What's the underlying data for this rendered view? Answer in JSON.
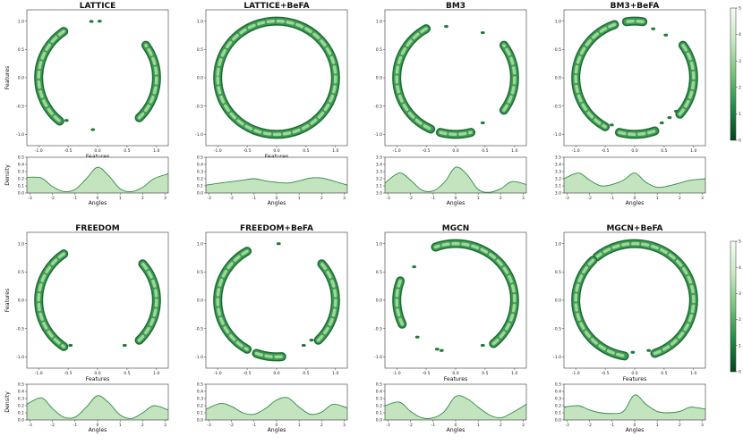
{
  "figure": {
    "rows": [
      {
        "panels": [
          "LATTICE",
          "LATTICE+BeFA",
          "BM3",
          "BM3+BeFA"
        ]
      },
      {
        "panels": [
          "FREEDOM",
          "FREEDOM+BeFA",
          "MGCN",
          "MGCN+BeFA"
        ]
      }
    ],
    "colorbar": {
      "ticks": [
        "0",
        "1",
        "2",
        "3",
        "4",
        "5"
      ],
      "colormap": "Greens"
    }
  },
  "chart_data": [
    {
      "type": "scatter-kde",
      "title": "LATTICE",
      "scatter": {
        "xlabel": "Features",
        "ylabel": "Features",
        "xticks": [
          "-1.0",
          "-0.5",
          "0.0",
          "0.5",
          "1.0"
        ],
        "yticks": [
          "-1.0",
          "-0.5",
          "0.0",
          "0.5",
          "1.0"
        ],
        "xlim": [
          -1.2,
          1.2
        ],
        "ylim": [
          -1.2,
          1.2
        ],
        "arcs_deg": [
          [
            125,
            230
          ],
          [
            -45,
            35
          ]
        ],
        "dots_deg": [
          235,
          265,
          88,
          96
        ]
      },
      "density": {
        "xlabel": "Angles",
        "ylabel": "Density",
        "xlim": [
          -3.14,
          3.14
        ],
        "ylim": [
          0,
          0.5
        ],
        "yticks": [
          "0.0",
          "0.1",
          "0.2",
          "0.3",
          "0.4",
          "0.5"
        ],
        "xticks": [
          "-3",
          "-2",
          "-1",
          "0",
          "1",
          "2",
          "3"
        ],
        "angles": [
          -3.14,
          -2.5,
          -2,
          -1.5,
          -1,
          -0.5,
          0,
          0.5,
          1,
          1.5,
          2,
          2.5,
          3.14
        ],
        "values": [
          0.22,
          0.21,
          0.09,
          0.02,
          0.05,
          0.2,
          0.36,
          0.24,
          0.06,
          0.02,
          0.08,
          0.2,
          0.27
        ]
      }
    },
    {
      "type": "scatter-kde",
      "title": "LATTICE+BeFA",
      "scatter": {
        "xlabel": "Features",
        "ylabel": "",
        "xticks": [
          "-1.0",
          "-0.5",
          "0.0",
          "0.5",
          "1.0"
        ],
        "yticks": [
          "-1.0",
          "-0.5",
          "0.0",
          "0.5",
          "1.0"
        ],
        "xlim": [
          -1.2,
          1.2
        ],
        "ylim": [
          -1.2,
          1.2
        ],
        "arcs_deg": [
          [
            0,
            360
          ]
        ],
        "dots_deg": []
      },
      "density": {
        "xlabel": "Angles",
        "ylabel": "",
        "xlim": [
          -3.14,
          3.14
        ],
        "ylim": [
          0,
          0.5
        ],
        "yticks": [
          "0.0",
          "0.1",
          "0.2",
          "0.3",
          "0.4",
          "0.5"
        ],
        "xticks": [
          "-3",
          "-2",
          "-1",
          "0",
          "1",
          "2",
          "3"
        ],
        "angles": [
          -3.14,
          -2.5,
          -2,
          -1.5,
          -1,
          -0.5,
          0,
          0.5,
          1,
          1.5,
          2,
          2.5,
          3.14
        ],
        "values": [
          0.11,
          0.14,
          0.16,
          0.18,
          0.2,
          0.17,
          0.15,
          0.14,
          0.17,
          0.21,
          0.21,
          0.17,
          0.11
        ]
      }
    },
    {
      "type": "scatter-kde",
      "title": "BM3",
      "scatter": {
        "xlabel": "",
        "ylabel": "",
        "xticks": [
          "-1.0",
          "-0.5",
          "0.0",
          "0.5",
          "1.0"
        ],
        "yticks": [
          "-1.0",
          "-0.5",
          "0.0",
          "0.5",
          "1.0"
        ],
        "xlim": [
          -1.2,
          1.2
        ],
        "ylim": [
          -1.2,
          1.2
        ],
        "arcs_deg": [
          [
            120,
            245
          ],
          [
            -35,
            35
          ],
          [
            255,
            285
          ]
        ],
        "dots_deg": [
          100,
          300,
          60
        ]
      },
      "density": {
        "xlabel": "Angles",
        "ylabel": "",
        "xlim": [
          -3.14,
          3.14
        ],
        "ylim": [
          3.0,
          3.5
        ],
        "yticks": [
          "3.0",
          "3.1",
          "3.2",
          "3.3",
          "3.4",
          "3.5"
        ],
        "xticks": [
          "-3",
          "-2",
          "-1",
          "0",
          "1",
          "2",
          "3"
        ],
        "angles": [
          -3.14,
          -2.5,
          -2,
          -1.5,
          -1,
          -0.5,
          0,
          0.5,
          1,
          1.5,
          2,
          2.5,
          3.14
        ],
        "values": [
          3.14,
          3.28,
          3.18,
          3.04,
          3.03,
          3.15,
          3.36,
          3.26,
          3.05,
          3.01,
          3.06,
          3.16,
          3.12
        ]
      }
    },
    {
      "type": "scatter-kde",
      "title": "BM3+BeFA",
      "scatter": {
        "xlabel": "",
        "ylabel": "",
        "xticks": [
          "-1.0",
          "-0.5",
          "0.0",
          "0.5",
          "1.0"
        ],
        "yticks": [
          "-1.0",
          "-0.5",
          "0.0",
          "0.5",
          "1.0"
        ],
        "xlim": [
          -1.2,
          1.2
        ],
        "ylim": [
          -1.2,
          1.2
        ],
        "arcs_deg": [
          [
            110,
            240
          ],
          [
            -40,
            35
          ],
          [
            255,
            290
          ],
          [
            82,
            98
          ]
        ],
        "dots_deg": [
          55,
          70,
          310,
          320,
          245,
          300
        ]
      },
      "density": {
        "xlabel": "Angles",
        "ylabel": "",
        "xlim": [
          -3.14,
          3.14
        ],
        "ylim": [
          3.0,
          3.5
        ],
        "yticks": [
          "3.0",
          "3.1",
          "3.2",
          "3.3",
          "3.4",
          "3.5"
        ],
        "xticks": [
          "-3",
          "-2",
          "-1",
          "0",
          "1",
          "2",
          "3"
        ],
        "angles": [
          -3.14,
          -2.5,
          -2,
          -1.5,
          -1,
          -0.5,
          0,
          0.5,
          1,
          1.5,
          2,
          2.5,
          3.14
        ],
        "values": [
          3.2,
          3.28,
          3.18,
          3.1,
          3.12,
          3.18,
          3.28,
          3.15,
          3.08,
          3.1,
          3.14,
          3.18,
          3.2
        ]
      }
    },
    {
      "type": "scatter-kde",
      "title": "FREEDOM",
      "scatter": {
        "xlabel": "Features",
        "ylabel": "Features",
        "xticks": [
          "-1.0",
          "-0.5",
          "0.0",
          "0.5",
          "1.0"
        ],
        "yticks": [
          "-1.0",
          "-0.5",
          "0.0",
          "0.5",
          "1.0"
        ],
        "xlim": [
          -1.2,
          1.2
        ],
        "ylim": [
          -1.2,
          1.2
        ],
        "arcs_deg": [
          [
            125,
            235
          ],
          [
            -45,
            40
          ]
        ],
        "dots_deg": [
          240,
          300
        ]
      },
      "density": {
        "xlabel": "Angles",
        "ylabel": "Density",
        "xlim": [
          -3.14,
          3.14
        ],
        "ylim": [
          0,
          0.5
        ],
        "yticks": [
          "0.0",
          "0.1",
          "0.2",
          "0.3",
          "0.4",
          "0.5"
        ],
        "xticks": [
          "-3",
          "-2",
          "-1",
          "0",
          "1",
          "2",
          "3"
        ],
        "angles": [
          -3.14,
          -2.5,
          -2,
          -1.5,
          -1,
          -0.5,
          0,
          0.5,
          1,
          1.5,
          2,
          2.5,
          3.14
        ],
        "values": [
          0.22,
          0.31,
          0.16,
          0.04,
          0.04,
          0.18,
          0.34,
          0.24,
          0.07,
          0.02,
          0.1,
          0.2,
          0.14
        ]
      }
    },
    {
      "type": "scatter-kde",
      "title": "FREEDOM+BeFA",
      "scatter": {
        "xlabel": "",
        "ylabel": "",
        "xticks": [
          "-1.0",
          "-0.5",
          "0.0",
          "0.5",
          "1.0"
        ],
        "yticks": [
          "-1.0",
          "-0.5",
          "0.0",
          "0.5",
          "1.0"
        ],
        "xlim": [
          -1.2,
          1.2
        ],
        "ylim": [
          -1.2,
          1.2
        ],
        "arcs_deg": [
          [
            120,
            240
          ],
          [
            -45,
            40
          ],
          [
            250,
            275
          ]
        ],
        "dots_deg": [
          88,
          300,
          310
        ]
      },
      "density": {
        "xlabel": "Angles",
        "ylabel": "",
        "xlim": [
          -3.14,
          3.14
        ],
        "ylim": [
          0,
          0.5
        ],
        "yticks": [
          "0.0",
          "0.1",
          "0.2",
          "0.3",
          "0.4",
          "0.5"
        ],
        "xticks": [
          "-3",
          "-2",
          "-1",
          "0",
          "1",
          "2",
          "3"
        ],
        "angles": [
          -3.14,
          -2.5,
          -2,
          -1.5,
          -1,
          -0.5,
          0,
          0.5,
          1,
          1.5,
          2,
          2.5,
          3.14
        ],
        "values": [
          0.15,
          0.23,
          0.19,
          0.1,
          0.08,
          0.16,
          0.28,
          0.31,
          0.18,
          0.08,
          0.11,
          0.22,
          0.17
        ]
      }
    },
    {
      "type": "scatter-kde",
      "title": "MGCN",
      "scatter": {
        "xlabel": "Features",
        "ylabel": "",
        "xticks": [
          "-1.0",
          "-0.5",
          "0.0",
          "0.5",
          "1.0"
        ],
        "yticks": [
          "-1.0",
          "-0.5",
          "0.0",
          "0.5",
          "1.0"
        ],
        "xlim": [
          -1.2,
          1.2
        ],
        "ylim": [
          -1.2,
          1.2
        ],
        "arcs_deg": [
          [
            -50,
            110
          ],
          [
            160,
            205
          ]
        ],
        "dots_deg": [
          140,
          225,
          250,
          255,
          300
        ]
      },
      "density": {
        "xlabel": "Angles",
        "ylabel": "",
        "xlim": [
          -3.14,
          3.14
        ],
        "ylim": [
          0,
          0.5
        ],
        "yticks": [
          "0.0",
          "0.1",
          "0.2",
          "0.3",
          "0.4",
          "0.5"
        ],
        "xticks": [
          "-3",
          "-2",
          "-1",
          "0",
          "1",
          "2",
          "3"
        ],
        "angles": [
          -3.14,
          -2.5,
          -2,
          -1.5,
          -1,
          -0.5,
          0,
          0.5,
          1,
          1.5,
          2,
          2.5,
          3.14
        ],
        "values": [
          0.2,
          0.25,
          0.12,
          0.03,
          0.03,
          0.12,
          0.33,
          0.3,
          0.18,
          0.07,
          0.03,
          0.1,
          0.22
        ]
      }
    },
    {
      "type": "scatter-kde",
      "title": "MGCN+BeFA",
      "scatter": {
        "xlabel": "Features",
        "ylabel": "",
        "xticks": [
          "-1.0",
          "-0.5",
          "0.0",
          "0.5",
          "1.0"
        ],
        "yticks": [
          "-1.0",
          "-0.5",
          "0.0",
          "0.5",
          "1.0"
        ],
        "xlim": [
          -1.2,
          1.2
        ],
        "ylim": [
          -1.2,
          1.2
        ],
        "arcs_deg": [
          [
            -70,
            130
          ],
          [
            135,
            260
          ]
        ],
        "dots_deg": [
          268,
          285
        ]
      },
      "density": {
        "xlabel": "Angles",
        "ylabel": "",
        "xlim": [
          -3.14,
          3.14
        ],
        "ylim": [
          0,
          0.5
        ],
        "yticks": [
          "0.0",
          "0.1",
          "0.2",
          "0.3",
          "0.4",
          "0.5"
        ],
        "xticks": [
          "-3",
          "-2",
          "-1",
          "0",
          "1",
          "2",
          "3"
        ],
        "angles": [
          -3.14,
          -2.5,
          -2,
          -1.5,
          -1,
          -0.5,
          0,
          0.5,
          1,
          1.5,
          2,
          2.5,
          3.14
        ],
        "values": [
          0.18,
          0.2,
          0.14,
          0.1,
          0.09,
          0.12,
          0.35,
          0.22,
          0.12,
          0.1,
          0.12,
          0.18,
          0.15
        ]
      }
    }
  ]
}
